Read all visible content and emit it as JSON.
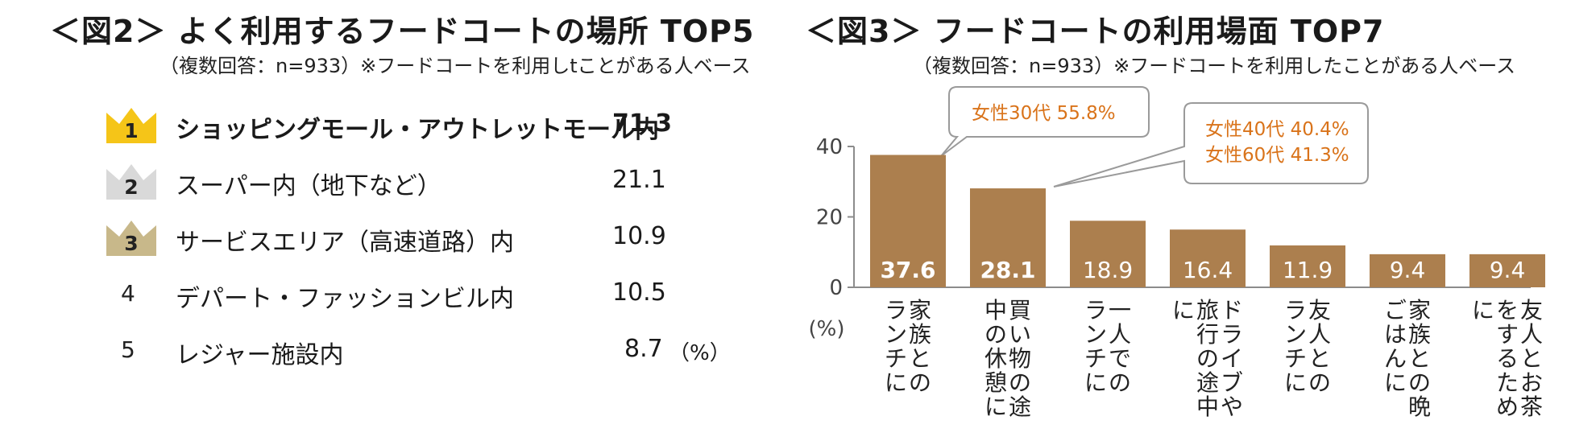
{
  "left": {
    "title": "＜図2＞ よく利用するフードコートの場所 TOP5",
    "subtitle": "（複数回答：n=933）※フードコートを利用しtことがある人ベース",
    "unit": "（%）",
    "items": [
      {
        "rank": "1",
        "label": "ショッピングモール・アウトレットモール内",
        "value": "71.3",
        "crown_color": "#f5c518"
      },
      {
        "rank": "2",
        "label": "スーパー内（地下など）",
        "value": "21.1",
        "crown_color": "#d9d9d9"
      },
      {
        "rank": "3",
        "label": "サービスエリア（高速道路）内",
        "value": "10.9",
        "crown_color": "#c8b88a"
      },
      {
        "rank": "4",
        "label": "デパート・ファッションビル内",
        "value": "10.5"
      },
      {
        "rank": "5",
        "label": "レジャー施設内",
        "value": "8.7"
      }
    ]
  },
  "right": {
    "title": "＜図3＞ フードコートの利用場面 TOP7",
    "subtitle": "（複数回答：n=933）※フードコートを利用したことがある人ベース",
    "callouts": [
      {
        "lines": [
          "女性30代 55.8%"
        ]
      },
      {
        "lines": [
          "女性40代 40.4%",
          "女性60代 41.3%"
        ]
      }
    ]
  },
  "chart_data": {
    "type": "bar",
    "title": "＜図3＞ フードコートの利用場面 TOP7",
    "ylabel": "(%)",
    "ylim": [
      0,
      40
    ],
    "yticks": [
      0,
      20,
      40
    ],
    "grid": false,
    "bar_color": "#ac7f4e",
    "categories": [
      "家族とのランチに",
      "買い物の途中の休憩に",
      "一人でのランチに",
      "ドライブや旅行の途中に",
      "友人とのランチに",
      "家族との晩ごはんに",
      "友人とお茶をするために"
    ],
    "values": [
      37.6,
      28.1,
      18.9,
      16.4,
      11.9,
      9.4,
      9.4
    ],
    "labels": [
      "37.6",
      "28.1",
      "18.9",
      "16.4",
      "11.9",
      "9.4",
      "9.4"
    ],
    "bold_values": [
      true,
      true,
      false,
      false,
      false,
      false,
      false
    ]
  },
  "colors": {
    "accent": "#ac7f4e",
    "callout_text": "#d9731a"
  }
}
